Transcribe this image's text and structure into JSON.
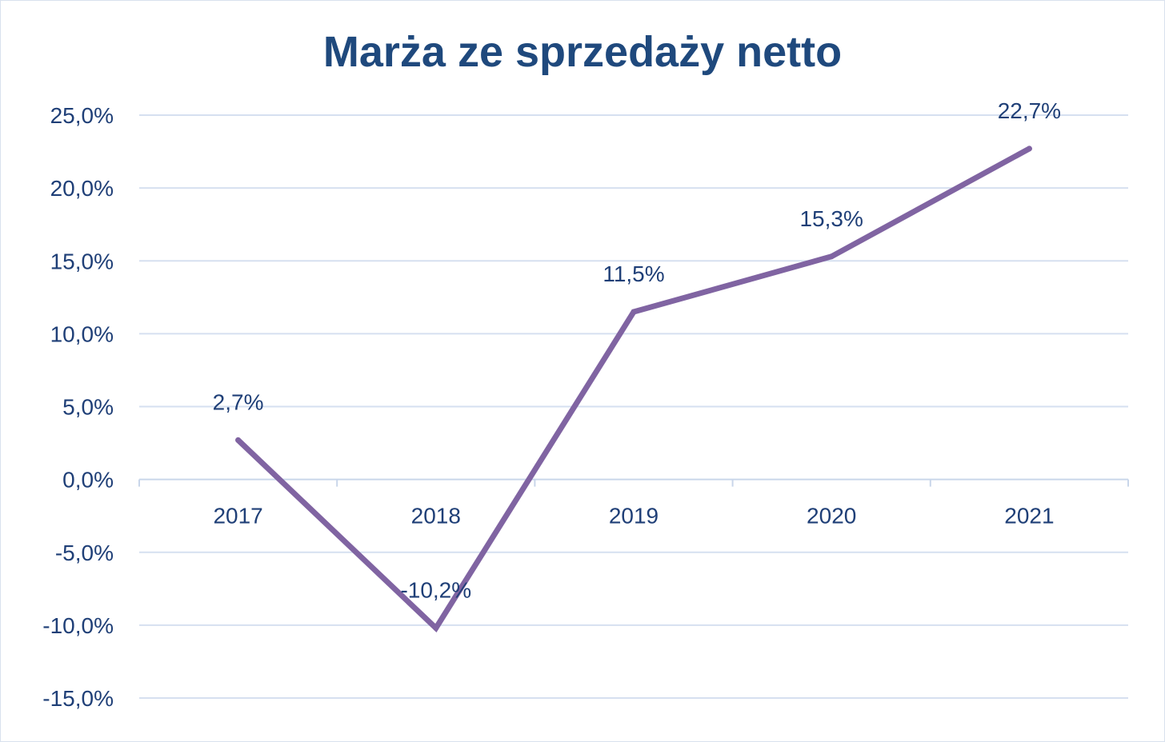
{
  "chart_data": {
    "type": "line",
    "title": "Marża ze sprzedaży netto",
    "categories": [
      "2017",
      "2018",
      "2019",
      "2020",
      "2021"
    ],
    "series": [
      {
        "values": [
          2.7,
          -10.2,
          11.5,
          15.3,
          22.7
        ],
        "labels": [
          "2,7%",
          "-10,2%",
          "11,5%",
          "15,3%",
          "22,7%"
        ],
        "color": "#8064a2"
      }
    ],
    "ylim": [
      -15,
      25
    ],
    "yticks": [
      25,
      20,
      15,
      10,
      5,
      0,
      -5,
      -10,
      -15
    ],
    "ytick_labels": [
      "25,0%",
      "20,0%",
      "15,0%",
      "10,0%",
      "5,0%",
      "0,0%",
      "-5,0%",
      "-10,0%",
      "-15,0%"
    ],
    "grid": true,
    "xlabel": "",
    "ylabel": ""
  },
  "colors": {
    "text": "#1f3f77",
    "title": "#1f497d",
    "grid": "#d6e0f0",
    "line": "#8064a2"
  }
}
